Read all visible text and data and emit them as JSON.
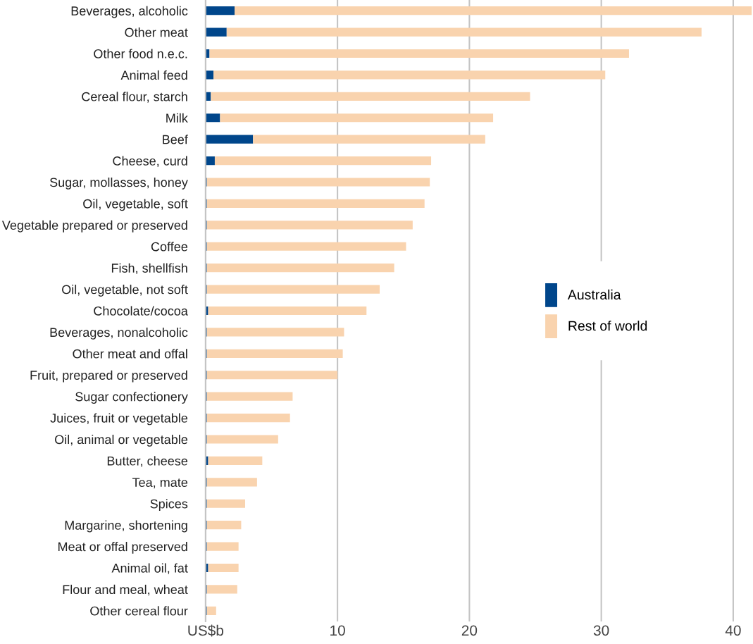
{
  "chart_data": {
    "type": "bar",
    "orientation": "horizontal",
    "stacked": true,
    "categories": [
      "Beverages, alcoholic",
      "Other meat",
      "Other food n.e.c.",
      "Animal feed",
      "Cereal flour, starch",
      "Milk",
      "Beef",
      "Cheese, curd",
      "Sugar, mollasses, honey",
      "Oil, vegetable, soft",
      "Vegetable prepared or preserved",
      "Coffee",
      "Fish, shellfish",
      "Oil, vegetable, not soft",
      "Chocolate/cocoa",
      "Beverages, nonalcoholic",
      "Other meat and offal",
      "Fruit, prepared or preserved",
      "Sugar confectionery",
      "Juices, fruit or vegetable",
      "Oil, animal or vegetable",
      "Butter, cheese",
      "Tea, mate",
      "Spices",
      "Margarine, shortening",
      "Meat or offal preserved",
      "Animal oil, fat",
      "Flour and meal, wheat",
      "Other cereal flour"
    ],
    "series": [
      {
        "name": "Australia",
        "color": "#00468b",
        "values": [
          2.2,
          1.6,
          0.3,
          0.6,
          0.4,
          1.1,
          3.6,
          0.7,
          0.1,
          0.1,
          0.1,
          0.1,
          0.1,
          0.1,
          0.2,
          0.1,
          0.1,
          0.1,
          0.1,
          0.1,
          0.1,
          0.2,
          0.1,
          0.1,
          0.1,
          0.1,
          0.2,
          0.1,
          0.1
        ]
      },
      {
        "name": "Rest of world",
        "color": "#f9d3ae",
        "values": [
          39.2,
          36.0,
          31.8,
          29.7,
          24.2,
          20.7,
          17.6,
          16.4,
          16.9,
          16.5,
          15.6,
          15.1,
          14.2,
          13.1,
          12.0,
          10.4,
          10.3,
          9.9,
          6.5,
          6.3,
          5.4,
          4.1,
          3.8,
          2.9,
          2.6,
          2.4,
          2.3,
          2.3,
          0.7
        ]
      }
    ],
    "xlim": [
      0,
      41.5
    ],
    "xticks": [
      {
        "value": 0,
        "label": "US$b"
      },
      10,
      20,
      30,
      40
    ],
    "grid": "x",
    "legend": "right"
  }
}
